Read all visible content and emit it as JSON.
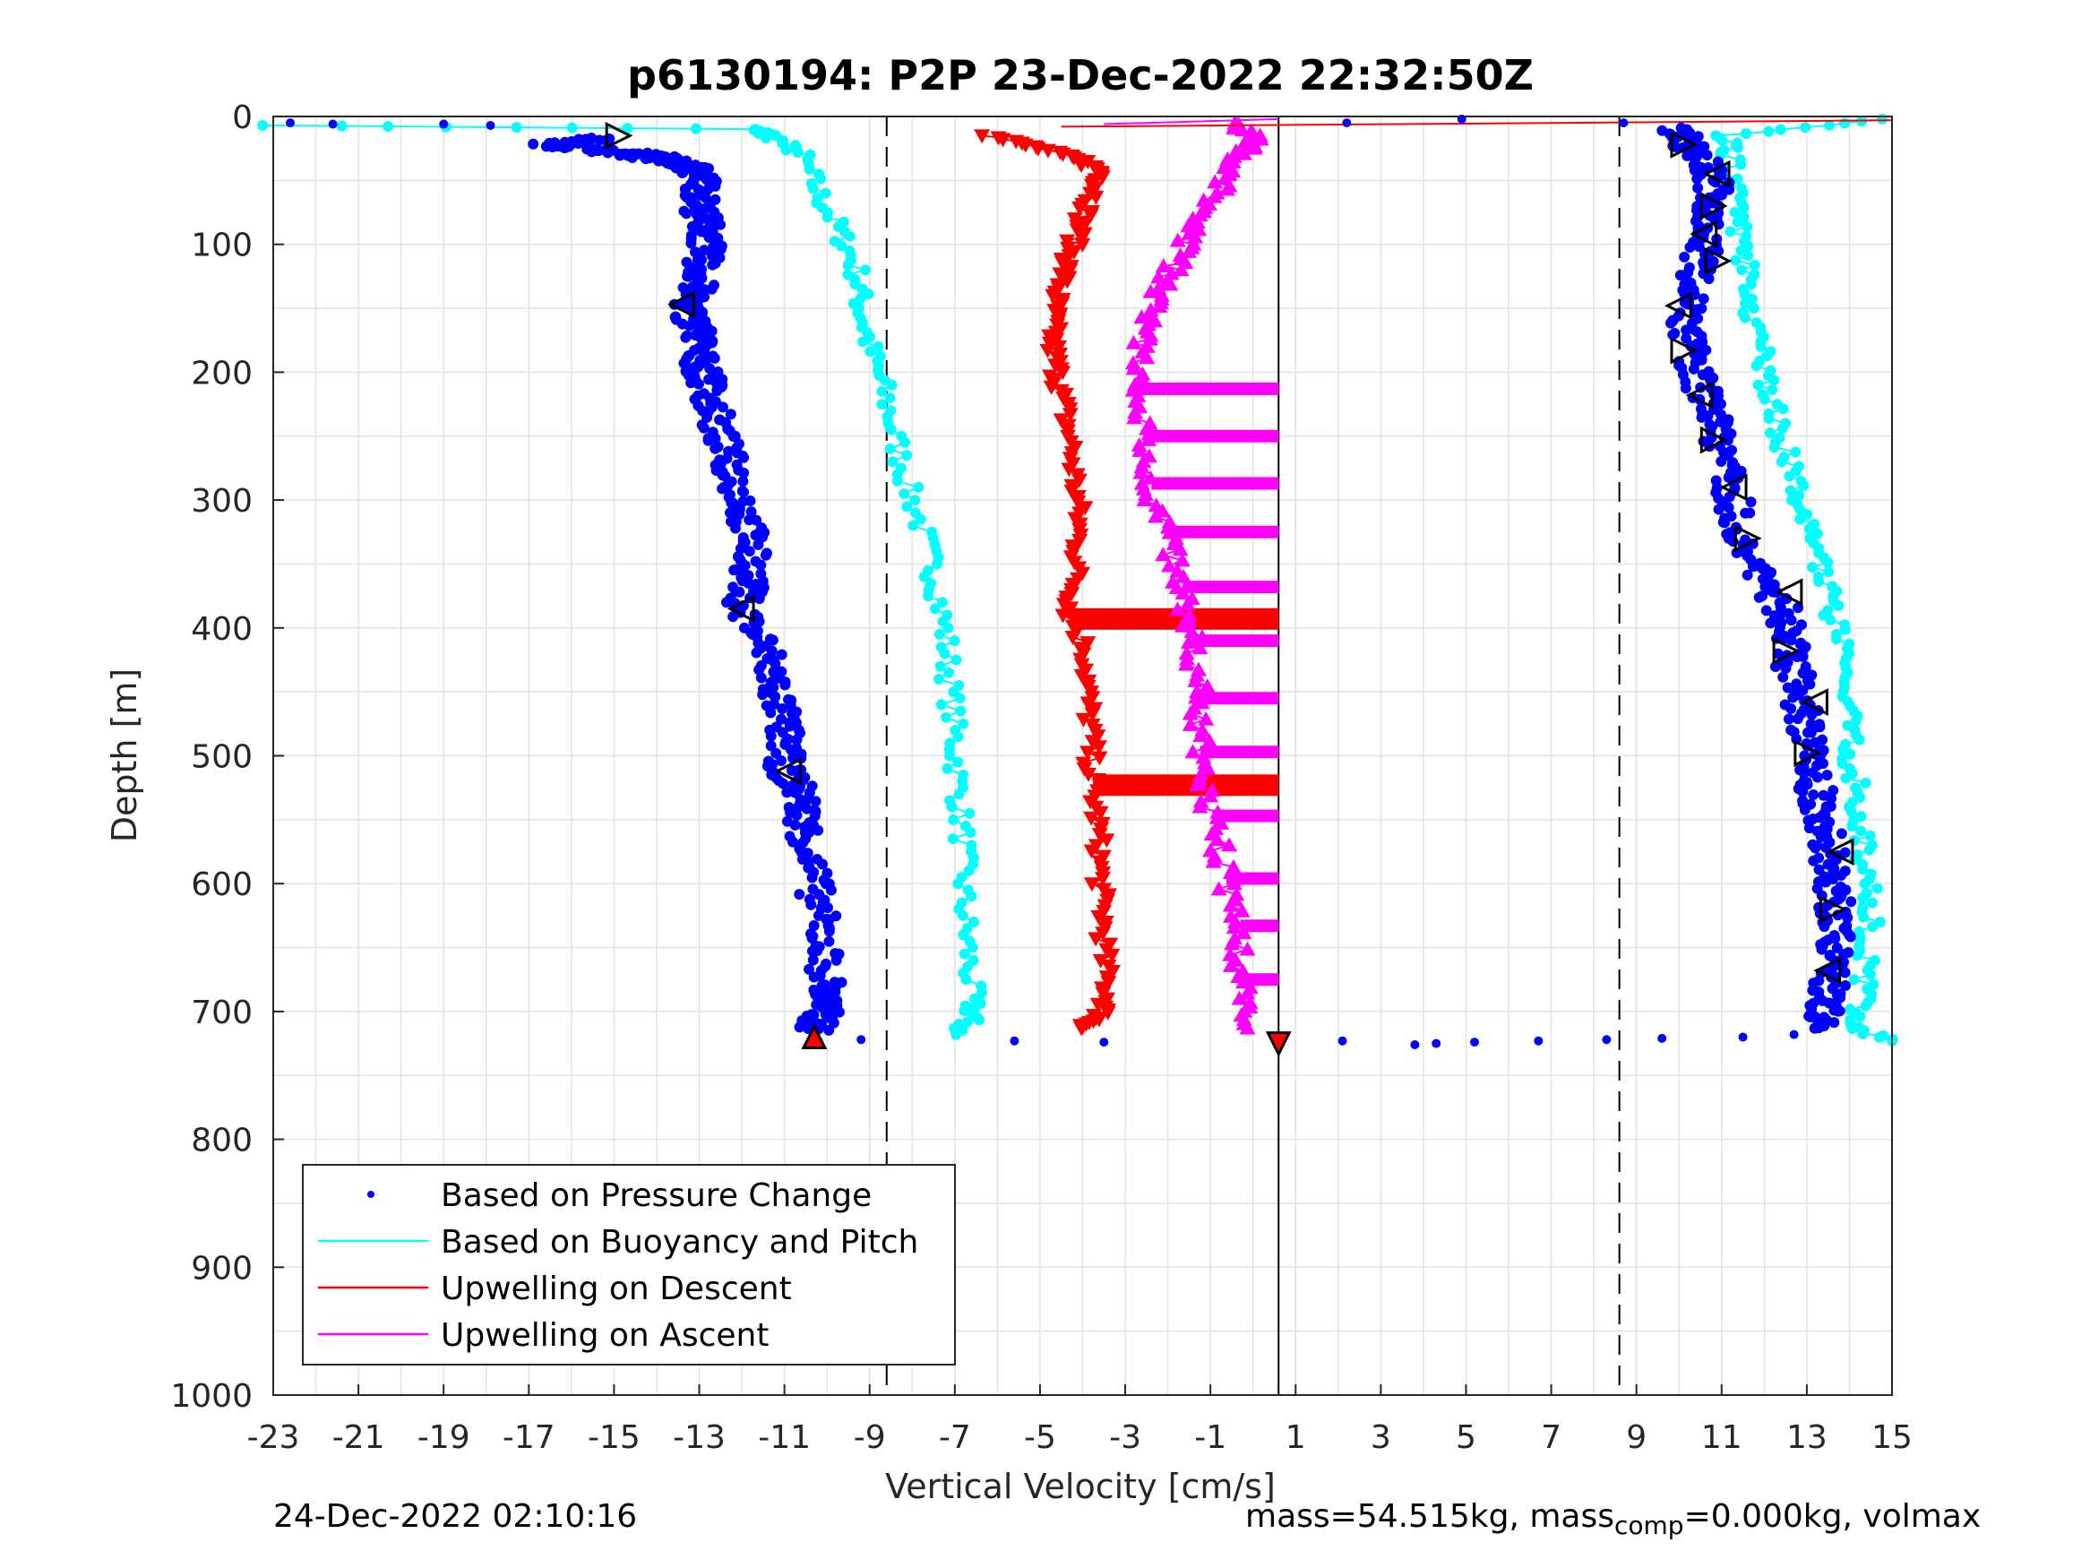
{
  "chart_data": {
    "type": "scatter",
    "title": "p6130194: P2P 23-Dec-2022 22:32:50Z",
    "xlabel": "Vertical Velocity [cm/s]",
    "ylabel": "Depth [m]",
    "xlim": [
      -23,
      15
    ],
    "ylim": [
      0,
      1000
    ],
    "y_reversed": true,
    "grid": true,
    "x_ticks": [
      "-23",
      "-21",
      "-19",
      "-17",
      "-15",
      "-13",
      "-11",
      "-9",
      "-7",
      "-5",
      "-3",
      "-1",
      "1",
      "3",
      "5",
      "7",
      "9",
      "11",
      "13",
      "15"
    ],
    "y_ticks": [
      "0",
      "100",
      "200",
      "300",
      "400",
      "500",
      "600",
      "700",
      "800",
      "900",
      "1000"
    ],
    "legend_position": "bottom-left",
    "reference_lines": {
      "dashed_x": [
        -8.6,
        8.6
      ],
      "solid_x": [
        0.6
      ]
    },
    "series": [
      {
        "name": "Based on Pressure Change",
        "color": "#0000ff",
        "style": "dots",
        "descent": [
          [
            -15.2,
            18
          ],
          [
            -16.5,
            22
          ],
          [
            -15,
            28
          ],
          [
            -14,
            32
          ],
          [
            -13.2,
            40
          ],
          [
            -12.9,
            50
          ],
          [
            -13,
            70
          ],
          [
            -12.8,
            90
          ],
          [
            -12.9,
            110
          ],
          [
            -13,
            130
          ],
          [
            -13.3,
            150
          ],
          [
            -13,
            170
          ],
          [
            -13,
            190
          ],
          [
            -12.8,
            210
          ],
          [
            -12.6,
            240
          ],
          [
            -12.3,
            270
          ],
          [
            -12,
            300
          ],
          [
            -11.8,
            330
          ],
          [
            -11.8,
            360
          ],
          [
            -12,
            385
          ],
          [
            -11.4,
            420
          ],
          [
            -11.2,
            450
          ],
          [
            -11,
            480
          ],
          [
            -11,
            510
          ],
          [
            -10.6,
            530
          ],
          [
            -10.5,
            560
          ],
          [
            -10.3,
            600
          ],
          [
            -10.1,
            640
          ],
          [
            -10,
            680
          ],
          [
            -10.1,
            700
          ],
          [
            -10.3,
            715
          ]
        ],
        "ascent": [
          [
            13.3,
            712
          ],
          [
            13.5,
            690
          ],
          [
            13.6,
            660
          ],
          [
            13.7,
            630
          ],
          [
            13.6,
            600
          ],
          [
            13.5,
            570
          ],
          [
            13.3,
            540
          ],
          [
            13.1,
            510
          ],
          [
            13,
            480
          ],
          [
            12.8,
            450
          ],
          [
            12.6,
            420
          ],
          [
            12.5,
            390
          ],
          [
            12,
            360
          ],
          [
            11.5,
            330
          ],
          [
            11.2,
            290
          ],
          [
            10.9,
            250
          ],
          [
            10.6,
            220
          ],
          [
            10.3,
            190
          ],
          [
            10.1,
            160
          ],
          [
            10.3,
            130
          ],
          [
            10.6,
            100
          ],
          [
            10.8,
            70
          ],
          [
            10.8,
            45
          ],
          [
            10.3,
            25
          ],
          [
            10,
            10
          ]
        ],
        "surface_scatter": [
          [
            -22.6,
            5
          ],
          [
            -21.6,
            6
          ],
          [
            -19,
            6
          ],
          [
            -17.9,
            7
          ],
          [
            -9.2,
            722
          ],
          [
            -5.6,
            723
          ],
          [
            -3.5,
            724
          ],
          [
            2.1,
            723
          ],
          [
            3.8,
            726
          ],
          [
            4.3,
            725
          ],
          [
            5.2,
            724
          ],
          [
            6.7,
            723
          ],
          [
            8.3,
            722
          ],
          [
            9.6,
            721
          ],
          [
            11.5,
            720
          ],
          [
            12.7,
            718
          ],
          [
            2.2,
            5
          ],
          [
            4.9,
            2
          ],
          [
            8.7,
            5
          ]
        ]
      },
      {
        "name": "Based on Buoyancy and Pitch",
        "color": "#00ffff",
        "style": "line+circles",
        "descent": [
          [
            -23,
            7
          ],
          [
            -11.8,
            10
          ],
          [
            -11.3,
            15
          ],
          [
            -10.6,
            30
          ],
          [
            -10.2,
            60
          ],
          [
            -9.7,
            90
          ],
          [
            -9.3,
            120
          ],
          [
            -9.2,
            150
          ],
          [
            -9,
            180
          ],
          [
            -8.7,
            210
          ],
          [
            -8.4,
            250
          ],
          [
            -8.1,
            290
          ],
          [
            -7.7,
            330
          ],
          [
            -7.4,
            370
          ],
          [
            -7.2,
            410
          ],
          [
            -7.1,
            450
          ],
          [
            -7,
            490
          ],
          [
            -6.9,
            530
          ],
          [
            -6.8,
            570
          ],
          [
            -6.8,
            610
          ],
          [
            -6.7,
            650
          ],
          [
            -6.6,
            690
          ],
          [
            -6.6,
            705
          ],
          [
            -7,
            718
          ]
        ],
        "ascent": [
          [
            15,
            723
          ],
          [
            14.1,
            712
          ],
          [
            14.3,
            690
          ],
          [
            14.4,
            660
          ],
          [
            14.5,
            630
          ],
          [
            14.4,
            600
          ],
          [
            14.3,
            570
          ],
          [
            14.2,
            540
          ],
          [
            14.1,
            510
          ],
          [
            14,
            480
          ],
          [
            13.9,
            450
          ],
          [
            13.8,
            420
          ],
          [
            13.6,
            390
          ],
          [
            13.4,
            360
          ],
          [
            13.1,
            330
          ],
          [
            12.8,
            300
          ],
          [
            12.6,
            270
          ],
          [
            12.3,
            240
          ],
          [
            12.1,
            210
          ],
          [
            11.9,
            180
          ],
          [
            11.7,
            150
          ],
          [
            11.6,
            120
          ],
          [
            11.4,
            90
          ],
          [
            11.3,
            60
          ],
          [
            11.2,
            30
          ],
          [
            11.1,
            15
          ],
          [
            15,
            2
          ]
        ]
      },
      {
        "name": "Upwelling on Descent",
        "color": "#ff0000",
        "style": "line+down-triangles",
        "points": [
          [
            -6.2,
            15
          ],
          [
            -5,
            25
          ],
          [
            -4,
            35
          ],
          [
            -3.5,
            45
          ],
          [
            -3.7,
            60
          ],
          [
            -4,
            80
          ],
          [
            -4.2,
            100
          ],
          [
            -4.4,
            120
          ],
          [
            -4.6,
            140
          ],
          [
            -4.7,
            160
          ],
          [
            -4.7,
            180
          ],
          [
            -4.6,
            200
          ],
          [
            -4.5,
            220
          ],
          [
            -4.3,
            250
          ],
          [
            -4.2,
            280
          ],
          [
            -4.1,
            310
          ],
          [
            -4.1,
            340
          ],
          [
            -4.2,
            370
          ],
          [
            -4.3,
            390
          ],
          [
            -3.9,
            420
          ],
          [
            -3.9,
            450
          ],
          [
            -3.8,
            480
          ],
          [
            -3.8,
            510
          ],
          [
            -3.7,
            540
          ],
          [
            -3.6,
            570
          ],
          [
            -3.6,
            600
          ],
          [
            -3.5,
            630
          ],
          [
            -3.5,
            660
          ],
          [
            -3.4,
            690
          ],
          [
            -3.6,
            705
          ],
          [
            -4,
            713
          ]
        ]
      },
      {
        "name": "Upwelling on Ascent",
        "color": "#ff00ff",
        "style": "line+up-triangles",
        "points": [
          [
            -0.2,
            713
          ],
          [
            -0.3,
            690
          ],
          [
            -0.3,
            660
          ],
          [
            -0.3,
            630
          ],
          [
            -0.6,
            600
          ],
          [
            -0.8,
            570
          ],
          [
            -1,
            540
          ],
          [
            -1.2,
            510
          ],
          [
            -1.3,
            480
          ],
          [
            -1.3,
            450
          ],
          [
            -1.4,
            420
          ],
          [
            -1.5,
            390
          ],
          [
            -1.7,
            360
          ],
          [
            -2,
            330
          ],
          [
            -2.3,
            300
          ],
          [
            -2.5,
            270
          ],
          [
            -2.6,
            240
          ],
          [
            -2.8,
            210
          ],
          [
            -2.7,
            180
          ],
          [
            -2.5,
            160
          ],
          [
            -2.2,
            140
          ],
          [
            -1.9,
            120
          ],
          [
            -1.6,
            100
          ],
          [
            -1.2,
            80
          ],
          [
            -0.8,
            60
          ],
          [
            -0.5,
            40
          ],
          [
            -0.2,
            25
          ],
          [
            0.2,
            15
          ],
          [
            -0.5,
            5
          ]
        ]
      }
    ],
    "profile_markers": [
      {
        "x": -14.9,
        "depth": 15,
        "shape": "tri-right"
      },
      {
        "x": -13.4,
        "depth": 147,
        "shape": "tri-left"
      },
      {
        "x": -12,
        "depth": 385,
        "shape": "tri-left"
      },
      {
        "x": -10.9,
        "depth": 512,
        "shape": "tri-left"
      },
      {
        "x": 10.1,
        "depth": 22,
        "shape": "tri-right"
      },
      {
        "x": 10.9,
        "depth": 45,
        "shape": "tri-left"
      },
      {
        "x": 10.8,
        "depth": 70,
        "shape": "tri-right"
      },
      {
        "x": 10.6,
        "depth": 92,
        "shape": "tri-left"
      },
      {
        "x": 10.9,
        "depth": 113,
        "shape": "tri-right"
      },
      {
        "x": 10,
        "depth": 148,
        "shape": "tri-left"
      },
      {
        "x": 10.1,
        "depth": 183,
        "shape": "tri-right"
      },
      {
        "x": 10.5,
        "depth": 218,
        "shape": "tri-left"
      },
      {
        "x": 10.8,
        "depth": 253,
        "shape": "tri-right"
      },
      {
        "x": 11.3,
        "depth": 290,
        "shape": "tri-left"
      },
      {
        "x": 11.6,
        "depth": 330,
        "shape": "tri-right"
      },
      {
        "x": 12.6,
        "depth": 372,
        "shape": "tri-left"
      },
      {
        "x": 12.5,
        "depth": 418,
        "shape": "tri-right"
      },
      {
        "x": 13.2,
        "depth": 458,
        "shape": "tri-left"
      },
      {
        "x": 13,
        "depth": 498,
        "shape": "tri-right"
      },
      {
        "x": 13.8,
        "depth": 575,
        "shape": "tri-left"
      },
      {
        "x": 13.6,
        "depth": 620,
        "shape": "tri-right"
      },
      {
        "x": 13.5,
        "depth": 668,
        "shape": "tri-left"
      }
    ],
    "end_markers": [
      {
        "x": -10.3,
        "depth": 720,
        "fill": "#ff0000",
        "shape": "tri-up"
      },
      {
        "x": 0.6,
        "depth": 725,
        "fill": "#ff0000",
        "shape": "tri-down"
      }
    ],
    "hysteresis_bands": [
      {
        "depth": 213
      },
      {
        "depth": 250
      },
      {
        "depth": 287
      },
      {
        "depth": 325
      },
      {
        "depth": 368
      },
      {
        "depth": 410
      },
      {
        "depth": 455
      },
      {
        "depth": 497
      },
      {
        "depth": 547
      },
      {
        "depth": 596
      },
      {
        "depth": 633
      },
      {
        "depth": 675
      }
    ],
    "red_bands": [
      {
        "depth": 393
      },
      {
        "depth": 523
      }
    ],
    "surface_lines": [
      {
        "color": "#ff0000",
        "from": [
          -4.5,
          8
        ],
        "to": [
          15,
          3
        ]
      },
      {
        "color": "#ff00ff",
        "from": [
          -3.5,
          6
        ],
        "to": [
          0.6,
          2
        ]
      }
    ]
  },
  "footer": {
    "timestamp": "24-Dec-2022 02:10:16",
    "mass_prefix": "mass=54.515kg, mass",
    "mass_sub": "comp",
    "mass_suffix": "=0.000kg, volmax"
  }
}
